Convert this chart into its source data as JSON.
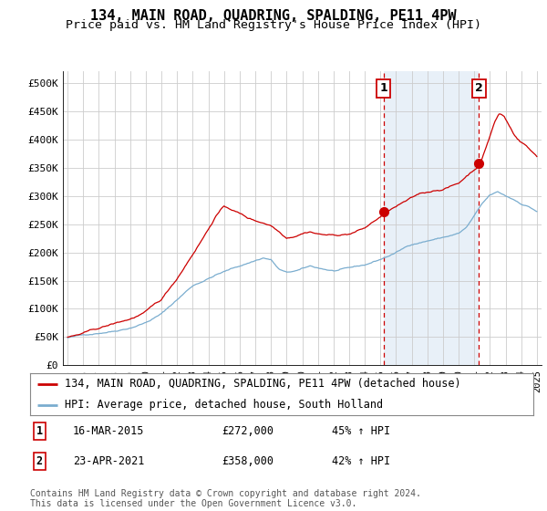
{
  "title": "134, MAIN ROAD, QUADRING, SPALDING, PE11 4PW",
  "subtitle": "Price paid vs. HM Land Registry's House Price Index (HPI)",
  "ylabel_ticks": [
    "£0",
    "£50K",
    "£100K",
    "£150K",
    "£200K",
    "£250K",
    "£300K",
    "£350K",
    "£400K",
    "£450K",
    "£500K"
  ],
  "ytick_values": [
    0,
    50000,
    100000,
    150000,
    200000,
    250000,
    300000,
    350000,
    400000,
    450000,
    500000
  ],
  "xlim_start": 1994.7,
  "xlim_end": 2025.3,
  "ylim": [
    0,
    520000
  ],
  "sale1_date": "16-MAR-2015",
  "sale1_price": 272000,
  "sale1_label": "45% ↑ HPI",
  "sale2_date": "23-APR-2021",
  "sale2_price": 358000,
  "sale2_label": "42% ↑ HPI",
  "sale1_year": 2015.21,
  "sale2_year": 2021.3,
  "line1_color": "#cc0000",
  "line2_color": "#7aadcf",
  "vline_color": "#cc0000",
  "shade_color": "#e8f0f8",
  "legend_label1": "134, MAIN ROAD, QUADRING, SPALDING, PE11 4PW (detached house)",
  "legend_label2": "HPI: Average price, detached house, South Holland",
  "footnote": "Contains HM Land Registry data © Crown copyright and database right 2024.\nThis data is licensed under the Open Government Licence v3.0.",
  "background_color": "#ffffff",
  "grid_color": "#cccccc",
  "title_fontsize": 11,
  "subtitle_fontsize": 9.5,
  "tick_fontsize": 8,
  "legend_fontsize": 8.5
}
